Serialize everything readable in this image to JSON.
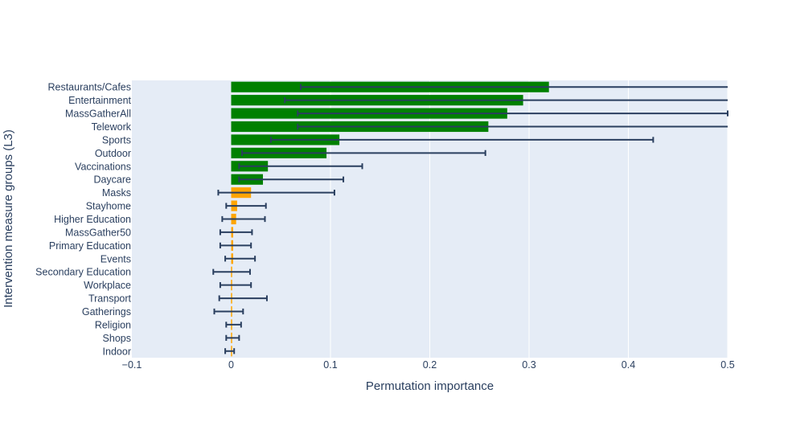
{
  "chart_data": {
    "type": "bar",
    "orientation": "horizontal",
    "xlabel": "Permutation importance",
    "ylabel": "Intervention measure groups (L3)",
    "xlim": [
      -0.1,
      0.5
    ],
    "x_ticks": [
      -0.1,
      0,
      0.1,
      0.2,
      0.3,
      0.4,
      0.5
    ],
    "x_tick_labels": [
      "−0.1",
      "0",
      "0.1",
      "0.2",
      "0.3",
      "0.4",
      "0.5"
    ],
    "grid": true,
    "plot_background": "#e5ecf6",
    "colors": {
      "significant": "#008000",
      "not_significant": "#ffa500",
      "error_bar": "#2a3f5f",
      "grid": "#ffffff"
    },
    "bars": [
      {
        "category": "Restaurants/Cafes",
        "value": 0.32,
        "error_low": 0.07,
        "error_high": 0.57,
        "color": "#008000"
      },
      {
        "category": "Entertainment",
        "value": 0.294,
        "error_low": 0.054,
        "error_high": 0.53,
        "color": "#008000"
      },
      {
        "category": "MassGatherAll",
        "value": 0.278,
        "error_low": 0.067,
        "error_high": 0.5,
        "color": "#008000"
      },
      {
        "category": "Telework",
        "value": 0.259,
        "error_low": 0.067,
        "error_high": 0.52,
        "color": "#008000"
      },
      {
        "category": "Sports",
        "value": 0.109,
        "error_low": 0.04,
        "error_high": 0.425,
        "color": "#008000"
      },
      {
        "category": "Outdoor",
        "value": 0.096,
        "error_low": 0.011,
        "error_high": 0.256,
        "color": "#008000"
      },
      {
        "category": "Vaccinations",
        "value": 0.037,
        "error_low": 0.008,
        "error_high": 0.132,
        "color": "#008000"
      },
      {
        "category": "Daycare",
        "value": 0.032,
        "error_low": 0.008,
        "error_high": 0.113,
        "color": "#008000"
      },
      {
        "category": "Masks",
        "value": 0.02,
        "error_low": -0.013,
        "error_high": 0.104,
        "color": "#ffa500"
      },
      {
        "category": "Stayhome",
        "value": 0.006,
        "error_low": -0.005,
        "error_high": 0.035,
        "color": "#ffa500"
      },
      {
        "category": "Higher Education",
        "value": 0.005,
        "error_low": -0.009,
        "error_high": 0.034,
        "color": "#ffa500"
      },
      {
        "category": "MassGather50",
        "value": 0.002,
        "error_low": -0.011,
        "error_high": 0.021,
        "color": "#ffa500"
      },
      {
        "category": "Primary Education",
        "value": 0.002,
        "error_low": -0.011,
        "error_high": 0.02,
        "color": "#ffa500"
      },
      {
        "category": "Events",
        "value": 0.002,
        "error_low": -0.006,
        "error_high": 0.024,
        "color": "#ffa500"
      },
      {
        "category": "Secondary Education",
        "value": 0.001,
        "error_low": -0.018,
        "error_high": 0.019,
        "color": "#ffa500"
      },
      {
        "category": "Workplace",
        "value": 0.001,
        "error_low": -0.011,
        "error_high": 0.02,
        "color": "#ffa500"
      },
      {
        "category": "Transport",
        "value": 0.001,
        "error_low": -0.012,
        "error_high": 0.036,
        "color": "#ffa500"
      },
      {
        "category": "Gatherings",
        "value": 0.0,
        "error_low": -0.017,
        "error_high": 0.012,
        "color": "#ffa500"
      },
      {
        "category": "Religion",
        "value": 0.0,
        "error_low": -0.005,
        "error_high": 0.01,
        "color": "#ffa500"
      },
      {
        "category": "Shops",
        "value": 0.0,
        "error_low": -0.005,
        "error_high": 0.008,
        "color": "#ffa500"
      },
      {
        "category": "Indoor",
        "value": 0.0,
        "error_low": -0.006,
        "error_high": 0.003,
        "color": "#ffa500"
      }
    ]
  }
}
